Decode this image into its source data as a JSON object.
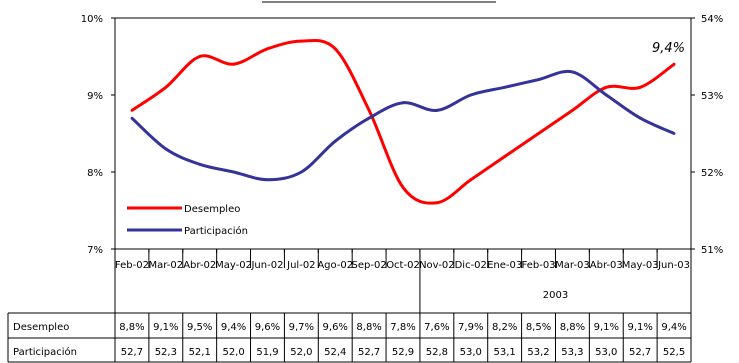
{
  "chart_data": {
    "type": "line",
    "title": "",
    "categories": [
      "Feb-02",
      "Mar-02",
      "Abr-02",
      "May-02",
      "Jun-02",
      "Jul-02",
      "Ago-02",
      "Sep-02",
      "Oct-02",
      "Nov-02",
      "Dic-02",
      "Ene-03",
      "Feb-03",
      "Mar-03",
      "Abr-03",
      "May-03",
      "Jun-03"
    ],
    "year_label": "2003",
    "year_start_index": 9,
    "series": [
      {
        "name": "Desempleo",
        "axis": "left",
        "color": "#ff0000",
        "values": [
          8.8,
          9.1,
          9.5,
          9.4,
          9.6,
          9.7,
          9.6,
          8.8,
          7.8,
          7.6,
          7.9,
          8.2,
          8.5,
          8.8,
          9.1,
          9.1,
          9.4
        ],
        "table_labels": [
          "8,8%",
          "9,1%",
          "9,5%",
          "9,4%",
          "9,6%",
          "9,7%",
          "9,6%",
          "8,8%",
          "7,8%",
          "7,6%",
          "7,9%",
          "8,2%",
          "8,5%",
          "8,8%",
          "9,1%",
          "9,1%",
          "9,4%"
        ]
      },
      {
        "name": "Participación",
        "axis": "right",
        "color": "#333399",
        "values": [
          52.7,
          52.3,
          52.1,
          52.0,
          51.9,
          52.0,
          52.4,
          52.7,
          52.9,
          52.8,
          53.0,
          53.1,
          53.2,
          53.3,
          53.0,
          52.7,
          52.5
        ],
        "table_labels": [
          "52,7",
          "52,3",
          "52,1",
          "52,0",
          "51,9",
          "52,0",
          "52,4",
          "52,7",
          "52,9",
          "52,8",
          "53,0",
          "53,1",
          "53,2",
          "53,3",
          "53,0",
          "52,7",
          "52,5"
        ]
      }
    ],
    "y_left": {
      "min": 7,
      "max": 10,
      "ticks": [
        "7%",
        "8%",
        "9%",
        "10%"
      ]
    },
    "y_right": {
      "min": 51,
      "max": 54,
      "ticks": [
        "51%",
        "52%",
        "53%",
        "54%"
      ]
    },
    "annotation": "9,4%",
    "legend_position": "lower-left",
    "grid": false
  }
}
